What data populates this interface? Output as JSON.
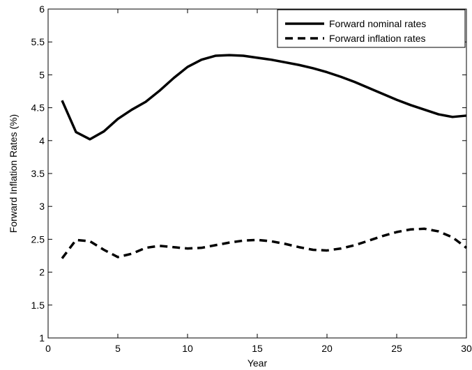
{
  "chart_data": {
    "type": "line",
    "title": "",
    "xlabel": "Year",
    "ylabel": "Forward Inflation Rates (%)",
    "xlim": [
      0,
      30
    ],
    "ylim": [
      1,
      6
    ],
    "xticks": [
      0,
      5,
      10,
      15,
      20,
      25,
      30
    ],
    "yticks": [
      1,
      1.5,
      2,
      2.5,
      3,
      3.5,
      4,
      4.5,
      5,
      5.5,
      6
    ],
    "grid": false,
    "legend_position": "top-right",
    "series": [
      {
        "name": "Forward nominal rates",
        "style": "solid",
        "color": "#000000",
        "x": [
          1,
          2,
          3,
          4,
          5,
          6,
          7,
          8,
          9,
          10,
          11,
          12,
          13,
          14,
          15,
          16,
          17,
          18,
          19,
          20,
          21,
          22,
          23,
          24,
          25,
          26,
          27,
          28,
          29,
          30
        ],
        "y": [
          4.61,
          4.13,
          4.02,
          4.14,
          4.33,
          4.47,
          4.59,
          4.76,
          4.95,
          5.12,
          5.23,
          5.29,
          5.3,
          5.29,
          5.26,
          5.23,
          5.19,
          5.15,
          5.1,
          5.04,
          4.97,
          4.89,
          4.8,
          4.71,
          4.62,
          4.54,
          4.47,
          4.4,
          4.36,
          4.38
        ]
      },
      {
        "name": "Forward inflation rates",
        "style": "dashed",
        "color": "#000000",
        "x": [
          1,
          2,
          3,
          4,
          5,
          6,
          7,
          8,
          9,
          10,
          11,
          12,
          13,
          14,
          15,
          16,
          17,
          18,
          19,
          20,
          21,
          22,
          23,
          24,
          25,
          26,
          27,
          28,
          29,
          30
        ],
        "y": [
          2.21,
          2.49,
          2.47,
          2.34,
          2.23,
          2.28,
          2.37,
          2.4,
          2.38,
          2.36,
          2.37,
          2.41,
          2.45,
          2.48,
          2.49,
          2.47,
          2.43,
          2.38,
          2.34,
          2.33,
          2.36,
          2.41,
          2.48,
          2.55,
          2.61,
          2.65,
          2.66,
          2.62,
          2.53,
          2.37
        ]
      }
    ]
  }
}
